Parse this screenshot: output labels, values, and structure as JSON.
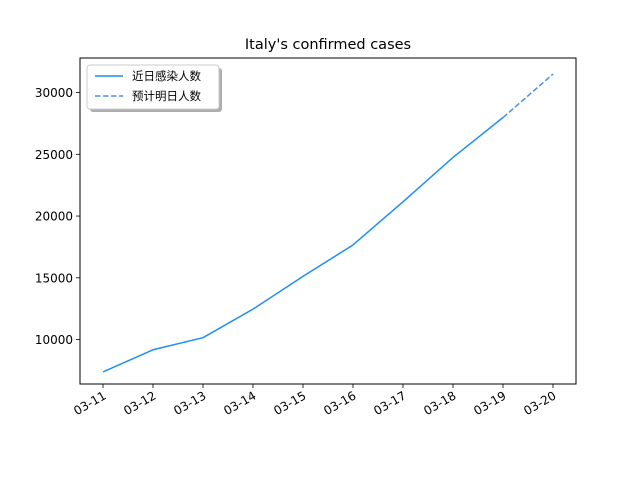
{
  "chart_data": {
    "type": "line",
    "title": "Italy's confirmed cases",
    "xlabel": "",
    "ylabel": "",
    "x": [
      "03-11",
      "03-12",
      "03-13",
      "03-14",
      "03-15",
      "03-16",
      "03-17",
      "03-18",
      "03-19",
      "03-20"
    ],
    "ylim": [
      6400,
      32800
    ],
    "yticks": [
      10000,
      15000,
      20000,
      25000,
      30000
    ],
    "grid": false,
    "legend_position": "top-left",
    "series": [
      {
        "name": "近日感染人数",
        "style": "solid",
        "color": "#1f8ef1",
        "x": [
          "03-11",
          "03-12",
          "03-13",
          "03-14",
          "03-15",
          "03-16",
          "03-17",
          "03-18",
          "03-19"
        ],
        "values": [
          7375,
          9172,
          10149,
          12462,
          15113,
          17660,
          21157,
          24747,
          27980
        ]
      },
      {
        "name": "预计明日人数",
        "style": "dashed",
        "color": "#4a8ee8",
        "x": [
          "03-19",
          "03-20"
        ],
        "values": [
          27980,
          31500
        ]
      }
    ]
  }
}
